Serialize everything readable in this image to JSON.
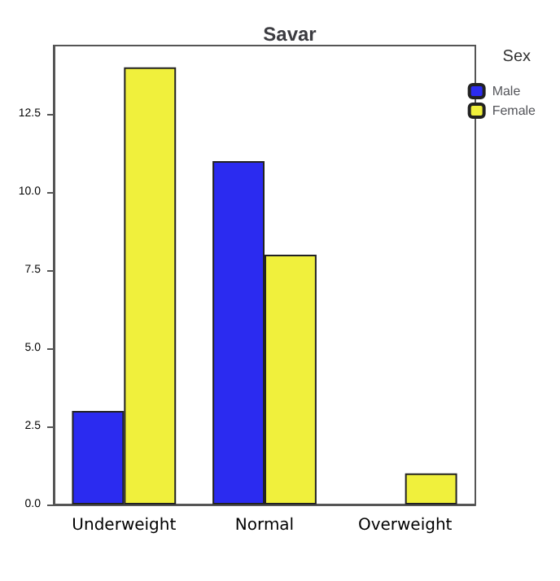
{
  "chart_data": {
    "type": "bar",
    "title": "Savar",
    "legend_title": "Sex",
    "legend": "top right",
    "grid": false,
    "categories": [
      "Underweight",
      "Normal",
      "Overweight"
    ],
    "series": [
      {
        "name": "Male",
        "color": "#2b2bf0",
        "values": [
          3,
          11,
          null
        ]
      },
      {
        "name": "Female",
        "color": "#f0f03c",
        "values": [
          14,
          8,
          1
        ]
      }
    ],
    "ylim": [
      0,
      14.7
    ],
    "yticks": [
      {
        "value": 0,
        "label": "0.0"
      },
      {
        "value": 2.5,
        "label": "2.5"
      },
      {
        "value": 5,
        "label": "5.0"
      },
      {
        "value": 7.5,
        "label": "7.5"
      },
      {
        "value": 10,
        "label": "10.0"
      },
      {
        "value": 12.5,
        "label": "12.5"
      }
    ]
  }
}
